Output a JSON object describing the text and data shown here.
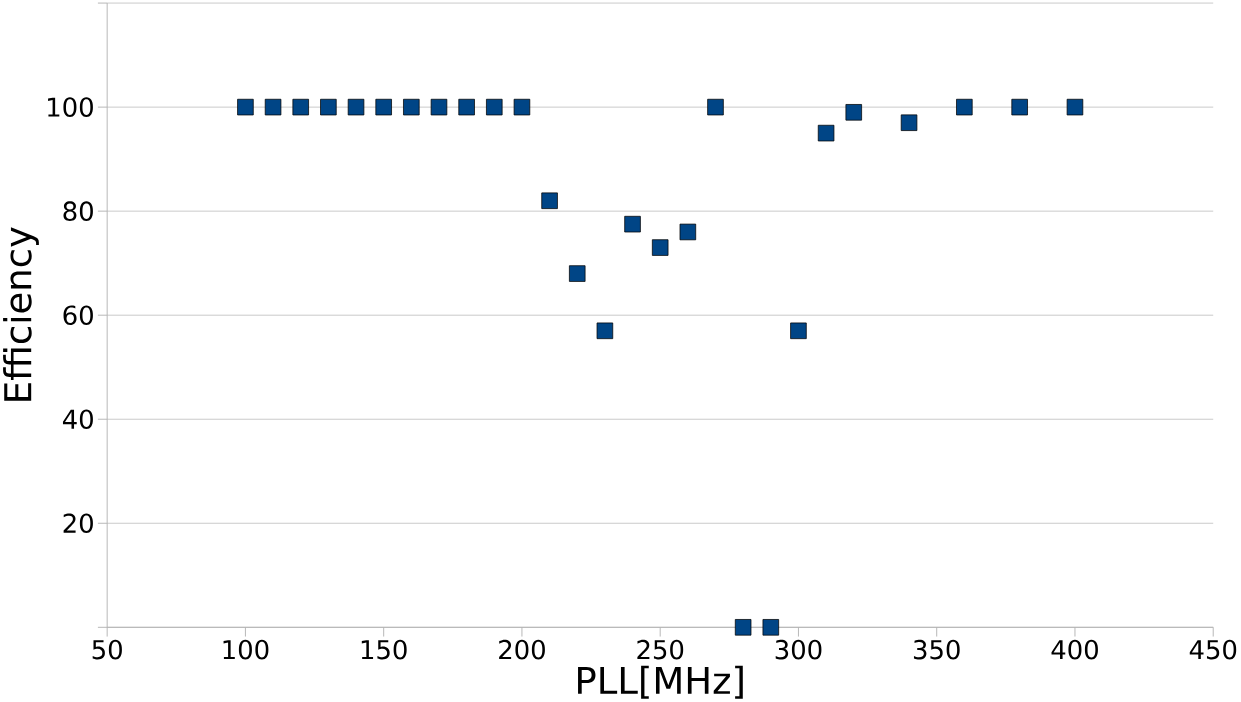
{
  "chart_data": {
    "type": "scatter",
    "xlabel": "PLL[MHz]",
    "ylabel": "Efficiency",
    "x": [
      100,
      110,
      120,
      130,
      140,
      150,
      160,
      170,
      180,
      190,
      200,
      210,
      220,
      230,
      240,
      250,
      260,
      270,
      280,
      290,
      300,
      310,
      320,
      340,
      360,
      380,
      400
    ],
    "series": [
      {
        "color": "#004586",
        "values": [
          100,
          100,
          100,
          100,
          100,
          100,
          100,
          100,
          100,
          100,
          100,
          82,
          68,
          57,
          77.5,
          73,
          76,
          100,
          0,
          0,
          57,
          95,
          99,
          97,
          100,
          100,
          100
        ]
      }
    ],
    "marker": "square",
    "grid": "y",
    "xlim": [
      50,
      450
    ],
    "xticks": [
      50,
      100,
      150,
      200,
      250,
      300,
      350,
      400,
      450
    ],
    "ylim": [
      0,
      120
    ],
    "yticks": [
      {
        "value": 0,
        "label": null
      },
      20,
      40,
      60,
      80,
      100,
      {
        "value": 120,
        "label": null
      }
    ]
  }
}
